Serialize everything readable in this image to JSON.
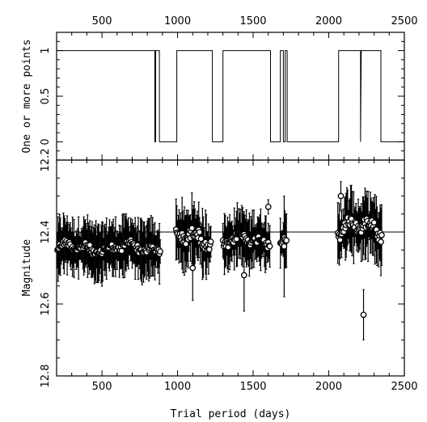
{
  "chart_data": [
    {
      "type": "line",
      "panel": "top",
      "xlabel": "",
      "ylabel": "One or more points",
      "xlim": [
        200,
        2500
      ],
      "ylim": [
        -0.2,
        1.2
      ],
      "x_ticks": [
        500,
        1000,
        1500,
        2000,
        2500
      ],
      "x_tick_labels_position": "top",
      "y_ticks": [
        0,
        0.5,
        1
      ],
      "y_tick_labels": [
        "0",
        "0.5",
        "1"
      ],
      "grid": false,
      "series": [
        {
          "style": "step",
          "x": [
            200,
            850,
            850,
            855,
            855,
            880,
            880,
            995,
            995,
            1230,
            1230,
            1300,
            1300,
            1615,
            1615,
            1680,
            1680,
            1700,
            1700,
            1712,
            1712,
            1725,
            1725,
            1785,
            1785,
            2065,
            2065,
            2210,
            2210,
            2215,
            2215,
            2345,
            2345,
            2500
          ],
          "values": [
            1,
            1,
            0,
            0,
            1,
            1,
            0,
            0,
            1,
            1,
            0,
            0,
            1,
            1,
            0,
            0,
            1,
            1,
            0,
            0,
            1,
            1,
            0,
            0,
            0,
            0,
            1,
            1,
            0,
            1,
            1,
            1,
            0,
            0
          ]
        }
      ]
    },
    {
      "type": "scatter",
      "panel": "bottom",
      "xlabel": "Trial period (days)",
      "ylabel": "Magnitude",
      "xlim": [
        200,
        2500
      ],
      "ylim": [
        12.8,
        12.2
      ],
      "inverted_y": true,
      "x_ticks": [
        500,
        1000,
        1500,
        2000,
        2500
      ],
      "x_tick_labels": [
        "500",
        "1000",
        "1500",
        "2000",
        "2500"
      ],
      "y_ticks": [
        12.2,
        12.4,
        12.6,
        12.8
      ],
      "y_tick_labels": [
        "12.2",
        "12.4",
        "12.6",
        "12.8"
      ],
      "reference_line": 12.4,
      "grid": false,
      "series": [
        {
          "marker": "open-circle-with-errorbars",
          "segments": [
            {
              "x_range": [
                205,
                885
              ],
              "base": 12.445,
              "noise": 0.018,
              "err_range": [
                0.03,
                0.09
              ]
            },
            {
              "x_range": [
                990,
                1220
              ],
              "base": 12.42,
              "noise": 0.03,
              "err_range": [
                0.03,
                0.1
              ]
            },
            {
              "x_range": [
                1300,
                1610
              ],
              "base": 12.425,
              "noise": 0.02,
              "err_range": [
                0.03,
                0.09
              ]
            },
            {
              "x_range": [
                1680,
                1720
              ],
              "base": 12.43,
              "noise": 0.02,
              "err_range": [
                0.03,
                0.08
              ]
            },
            {
              "x_range": [
                2060,
                2350
              ],
              "base": 12.39,
              "noise": 0.03,
              "err_range": [
                0.03,
                0.1
              ]
            }
          ],
          "notable_points": [
            {
              "x": 1100,
              "y": 12.5,
              "err": 0.09
            },
            {
              "x": 1440,
              "y": 12.52,
              "err": 0.1
            },
            {
              "x": 1600,
              "y": 12.33,
              "err": 0.02
            },
            {
              "x": 1705,
              "y": 12.44,
              "err": 0.14
            },
            {
              "x": 2080,
              "y": 12.3,
              "err": 0.04
            },
            {
              "x": 2230,
              "y": 12.63,
              "err": 0.07
            }
          ]
        }
      ]
    }
  ]
}
